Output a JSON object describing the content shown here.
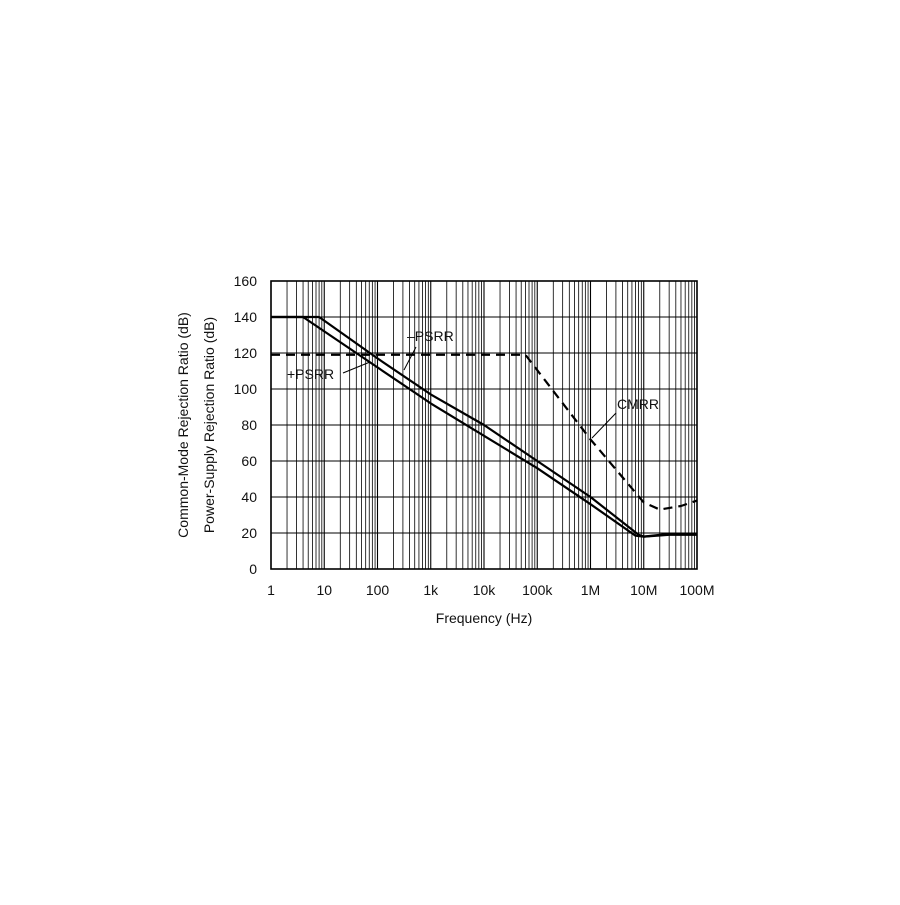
{
  "chart_data": {
    "type": "line",
    "xlabel": "Frequency (Hz)",
    "ylabel": [
      "Common-Mode Rejection Ratio (dB)",
      "Power-Supply Rejection Ratio (dB)"
    ],
    "x_scale": "log",
    "xlim": [
      1,
      100000000
    ],
    "ylim": [
      0,
      160
    ],
    "grid": true,
    "x_ticks": [
      {
        "value": 1,
        "label": "1"
      },
      {
        "value": 10,
        "label": "10"
      },
      {
        "value": 100,
        "label": "100"
      },
      {
        "value": 1000,
        "label": "1k"
      },
      {
        "value": 10000,
        "label": "10k"
      },
      {
        "value": 100000,
        "label": "100k"
      },
      {
        "value": 1000000,
        "label": "1M"
      },
      {
        "value": 10000000,
        "label": "10M"
      },
      {
        "value": 100000000,
        "label": "100M"
      }
    ],
    "y_ticks": [
      {
        "value": 0,
        "label": "0"
      },
      {
        "value": 20,
        "label": "20"
      },
      {
        "value": 40,
        "label": "40"
      },
      {
        "value": 60,
        "label": "60"
      },
      {
        "value": 80,
        "label": "80"
      },
      {
        "value": 100,
        "label": "100"
      },
      {
        "value": 120,
        "label": "120"
      },
      {
        "value": 140,
        "label": "140"
      },
      {
        "value": 160,
        "label": "160"
      }
    ],
    "series": [
      {
        "name": "+PSRR",
        "style": "solid",
        "x": [
          1,
          4,
          100,
          1000,
          10000,
          100000,
          1000000,
          7000000,
          10000000,
          30000000,
          100000000
        ],
        "y": [
          140,
          140,
          112,
          92,
          74,
          56,
          36,
          18.5,
          18,
          19,
          19
        ]
      },
      {
        "name": "–PSRR",
        "style": "solid",
        "x": [
          1,
          8,
          100,
          1000,
          10000,
          100000,
          1000000,
          8000000,
          10000000,
          30000000,
          100000000
        ],
        "y": [
          140,
          140,
          117,
          97,
          80,
          60,
          40,
          19,
          18,
          19.5,
          19.5
        ]
      },
      {
        "name": "CMRR",
        "style": "dashed",
        "x": [
          1,
          60000,
          1000000,
          10000000,
          20000000,
          50000000,
          100000000
        ],
        "y": [
          119,
          119,
          72,
          37,
          33,
          35,
          38
        ]
      }
    ],
    "annotations": [
      {
        "text": "–PSRR",
        "series": "–PSRR"
      },
      {
        "text": "+PSRR",
        "series": "+PSRR"
      },
      {
        "text": "CMRR",
        "series": "CMRR"
      }
    ]
  }
}
